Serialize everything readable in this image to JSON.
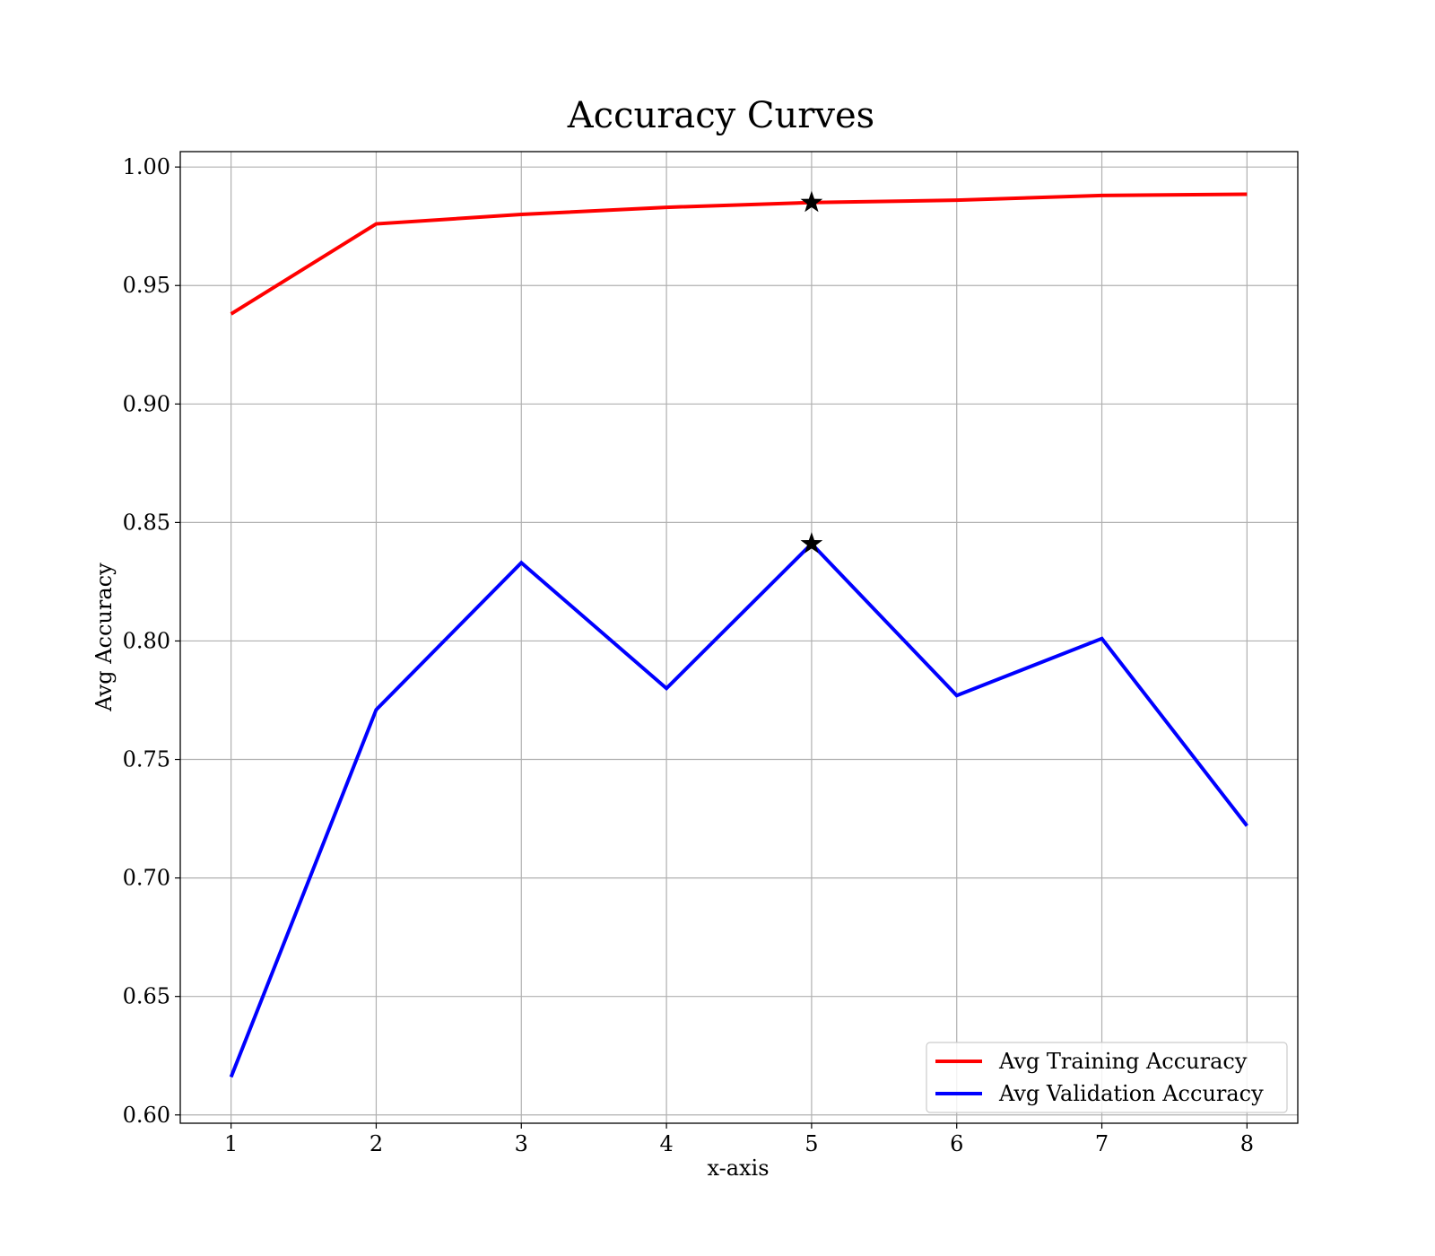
{
  "chart_data": {
    "type": "line",
    "title": "Accuracy Curves",
    "xlabel": "x-axis",
    "ylabel": "Avg Accuracy",
    "x": [
      1,
      2,
      3,
      4,
      5,
      6,
      7,
      8
    ],
    "xlim": [
      0.65,
      8.35
    ],
    "ylim": [
      0.5965,
      1.0065
    ],
    "xticks": [
      1,
      2,
      3,
      4,
      5,
      6,
      7,
      8
    ],
    "yticks": [
      0.6,
      0.65,
      0.7,
      0.75,
      0.8,
      0.85,
      0.9,
      0.95,
      1.0
    ],
    "grid": true,
    "legend_position": "lower-right",
    "series": [
      {
        "name": "Avg Training Accuracy",
        "color": "#ff0000",
        "values": [
          0.938,
          0.976,
          0.98,
          0.983,
          0.985,
          0.986,
          0.988,
          0.9885
        ]
      },
      {
        "name": "Avg Validation Accuracy",
        "color": "#0000ff",
        "values": [
          0.616,
          0.771,
          0.833,
          0.78,
          0.841,
          0.777,
          0.801,
          0.722
        ]
      }
    ],
    "markers": [
      {
        "series": "Avg Training Accuracy",
        "x": 5,
        "y": 0.985,
        "shape": "star",
        "color": "#000000"
      },
      {
        "series": "Avg Validation Accuracy",
        "x": 5,
        "y": 0.841,
        "shape": "star",
        "color": "#000000"
      }
    ]
  }
}
